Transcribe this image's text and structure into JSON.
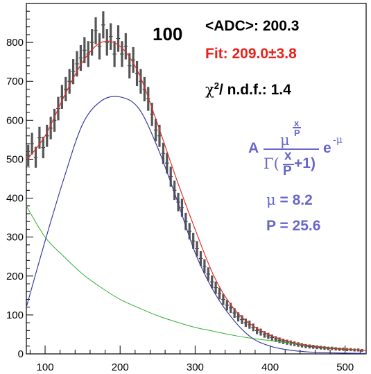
{
  "chart_data": {
    "type": "histogram",
    "title": "",
    "xlabel": "",
    "ylabel": "",
    "xlim": [
      75,
      528
    ],
    "ylim": [
      0,
      900
    ],
    "x_ticks": [
      100,
      200,
      300,
      400,
      500
    ],
    "y_ticks": [
      0,
      100,
      200,
      300,
      400,
      500,
      600,
      700,
      800
    ],
    "grid": false,
    "annotations": {
      "run_label": "100",
      "mean_label": "<ADC>: 200.3",
      "fit_label": "Fit: 209.0±3.8",
      "chi2_prefix": "χ",
      "chi2_sup": "2",
      "chi2_suffix": "/ n.d.f.:  1.4",
      "formula_A": "A",
      "formula_mu": "μ",
      "formula_exp_num": "x",
      "formula_exp_den": "P",
      "formula_gamma": "Γ(",
      "formula_frac_num": "x",
      "formula_frac_den": "P",
      "formula_plus": "+1)",
      "formula_e": "e",
      "formula_e_exp": "-μ",
      "mu_symbol": "μ",
      "mu_value": " =  8.2",
      "p_value": "P = 25.6"
    },
    "colors": {
      "histogram": "#555555",
      "fit_total": "#e0302a",
      "signal": "#3a3a9e",
      "background": "#2fb02f",
      "fit_text": "#e8221c",
      "formula_text": "#6666cc"
    },
    "histogram": {
      "bin_width": 5,
      "bins": [
        {
          "x": 77.5,
          "y": 510
        },
        {
          "x": 82.5,
          "y": 540
        },
        {
          "x": 87.5,
          "y": 505
        },
        {
          "x": 92.5,
          "y": 555
        },
        {
          "x": 97.5,
          "y": 530
        },
        {
          "x": 102.5,
          "y": 560
        },
        {
          "x": 107.5,
          "y": 580
        },
        {
          "x": 112.5,
          "y": 600
        },
        {
          "x": 117.5,
          "y": 630
        },
        {
          "x": 122.5,
          "y": 660
        },
        {
          "x": 127.5,
          "y": 680
        },
        {
          "x": 132.5,
          "y": 700
        },
        {
          "x": 137.5,
          "y": 725
        },
        {
          "x": 142.5,
          "y": 745
        },
        {
          "x": 147.5,
          "y": 760
        },
        {
          "x": 152.5,
          "y": 780
        },
        {
          "x": 157.5,
          "y": 770
        },
        {
          "x": 162.5,
          "y": 800
        },
        {
          "x": 167.5,
          "y": 830
        },
        {
          "x": 172.5,
          "y": 790
        },
        {
          "x": 177.5,
          "y": 845
        },
        {
          "x": 182.5,
          "y": 800
        },
        {
          "x": 187.5,
          "y": 815
        },
        {
          "x": 192.5,
          "y": 770
        },
        {
          "x": 197.5,
          "y": 810
        },
        {
          "x": 202.5,
          "y": 770
        },
        {
          "x": 207.5,
          "y": 790
        },
        {
          "x": 212.5,
          "y": 740
        },
        {
          "x": 217.5,
          "y": 755
        },
        {
          "x": 222.5,
          "y": 720
        },
        {
          "x": 227.5,
          "y": 700
        },
        {
          "x": 232.5,
          "y": 680
        },
        {
          "x": 237.5,
          "y": 655
        },
        {
          "x": 242.5,
          "y": 615
        },
        {
          "x": 247.5,
          "y": 575
        },
        {
          "x": 252.5,
          "y": 560
        },
        {
          "x": 257.5,
          "y": 515
        },
        {
          "x": 262.5,
          "y": 490
        },
        {
          "x": 267.5,
          "y": 455
        },
        {
          "x": 272.5,
          "y": 420
        },
        {
          "x": 277.5,
          "y": 390
        },
        {
          "x": 282.5,
          "y": 375
        },
        {
          "x": 287.5,
          "y": 340
        },
        {
          "x": 292.5,
          "y": 315
        },
        {
          "x": 297.5,
          "y": 290
        },
        {
          "x": 302.5,
          "y": 270
        },
        {
          "x": 307.5,
          "y": 245
        },
        {
          "x": 312.5,
          "y": 225
        },
        {
          "x": 317.5,
          "y": 205
        },
        {
          "x": 322.5,
          "y": 185
        },
        {
          "x": 327.5,
          "y": 170
        },
        {
          "x": 332.5,
          "y": 155
        },
        {
          "x": 337.5,
          "y": 140
        },
        {
          "x": 342.5,
          "y": 125
        },
        {
          "x": 347.5,
          "y": 118
        },
        {
          "x": 352.5,
          "y": 105
        },
        {
          "x": 357.5,
          "y": 95
        },
        {
          "x": 362.5,
          "y": 88
        },
        {
          "x": 367.5,
          "y": 80
        },
        {
          "x": 372.5,
          "y": 75
        },
        {
          "x": 377.5,
          "y": 68
        },
        {
          "x": 382.5,
          "y": 60
        },
        {
          "x": 387.5,
          "y": 56
        },
        {
          "x": 392.5,
          "y": 50
        },
        {
          "x": 397.5,
          "y": 46
        },
        {
          "x": 402.5,
          "y": 42
        },
        {
          "x": 407.5,
          "y": 38
        },
        {
          "x": 412.5,
          "y": 35
        },
        {
          "x": 417.5,
          "y": 32
        },
        {
          "x": 422.5,
          "y": 30
        },
        {
          "x": 427.5,
          "y": 28
        },
        {
          "x": 432.5,
          "y": 26
        },
        {
          "x": 437.5,
          "y": 24
        },
        {
          "x": 442.5,
          "y": 22
        },
        {
          "x": 447.5,
          "y": 20
        },
        {
          "x": 452.5,
          "y": 19
        },
        {
          "x": 457.5,
          "y": 18
        },
        {
          "x": 462.5,
          "y": 17
        },
        {
          "x": 467.5,
          "y": 16
        },
        {
          "x": 472.5,
          "y": 15
        },
        {
          "x": 477.5,
          "y": 14
        },
        {
          "x": 482.5,
          "y": 14
        },
        {
          "x": 487.5,
          "y": 13
        },
        {
          "x": 492.5,
          "y": 12
        },
        {
          "x": 497.5,
          "y": 12
        },
        {
          "x": 502.5,
          "y": 11
        },
        {
          "x": 507.5,
          "y": 11
        },
        {
          "x": 512.5,
          "y": 10
        },
        {
          "x": 517.5,
          "y": 10
        },
        {
          "x": 522.5,
          "y": 9
        }
      ]
    },
    "curves": {
      "fit_total": [
        [
          75,
          497
        ],
        [
          100,
          560
        ],
        [
          125,
          660
        ],
        [
          150,
          750
        ],
        [
          175,
          800
        ],
        [
          200,
          790
        ],
        [
          225,
          720
        ],
        [
          250,
          590
        ],
        [
          275,
          450
        ],
        [
          300,
          320
        ],
        [
          325,
          200
        ],
        [
          350,
          120
        ],
        [
          375,
          75
        ],
        [
          400,
          48
        ],
        [
          425,
          32
        ],
        [
          450,
          22
        ],
        [
          475,
          16
        ],
        [
          500,
          12
        ],
        [
          528,
          9
        ]
      ],
      "signal": [
        [
          75,
          120
        ],
        [
          100,
          290
        ],
        [
          125,
          450
        ],
        [
          150,
          590
        ],
        [
          175,
          650
        ],
        [
          200,
          660
        ],
        [
          225,
          630
        ],
        [
          250,
          530
        ],
        [
          275,
          400
        ],
        [
          300,
          260
        ],
        [
          325,
          160
        ],
        [
          350,
          90
        ],
        [
          375,
          42
        ],
        [
          400,
          20
        ],
        [
          425,
          10
        ],
        [
          450,
          5
        ],
        [
          475,
          3
        ],
        [
          500,
          2
        ],
        [
          528,
          1
        ]
      ],
      "background": [
        [
          75,
          380
        ],
        [
          100,
          300
        ],
        [
          125,
          250
        ],
        [
          150,
          205
        ],
        [
          175,
          170
        ],
        [
          200,
          140
        ],
        [
          225,
          118
        ],
        [
          250,
          98
        ],
        [
          275,
          82
        ],
        [
          300,
          68
        ],
        [
          325,
          58
        ],
        [
          350,
          48
        ],
        [
          375,
          40
        ],
        [
          400,
          34
        ],
        [
          425,
          28
        ],
        [
          450,
          22
        ],
        [
          475,
          17
        ],
        [
          500,
          13
        ],
        [
          528,
          9
        ]
      ]
    }
  }
}
